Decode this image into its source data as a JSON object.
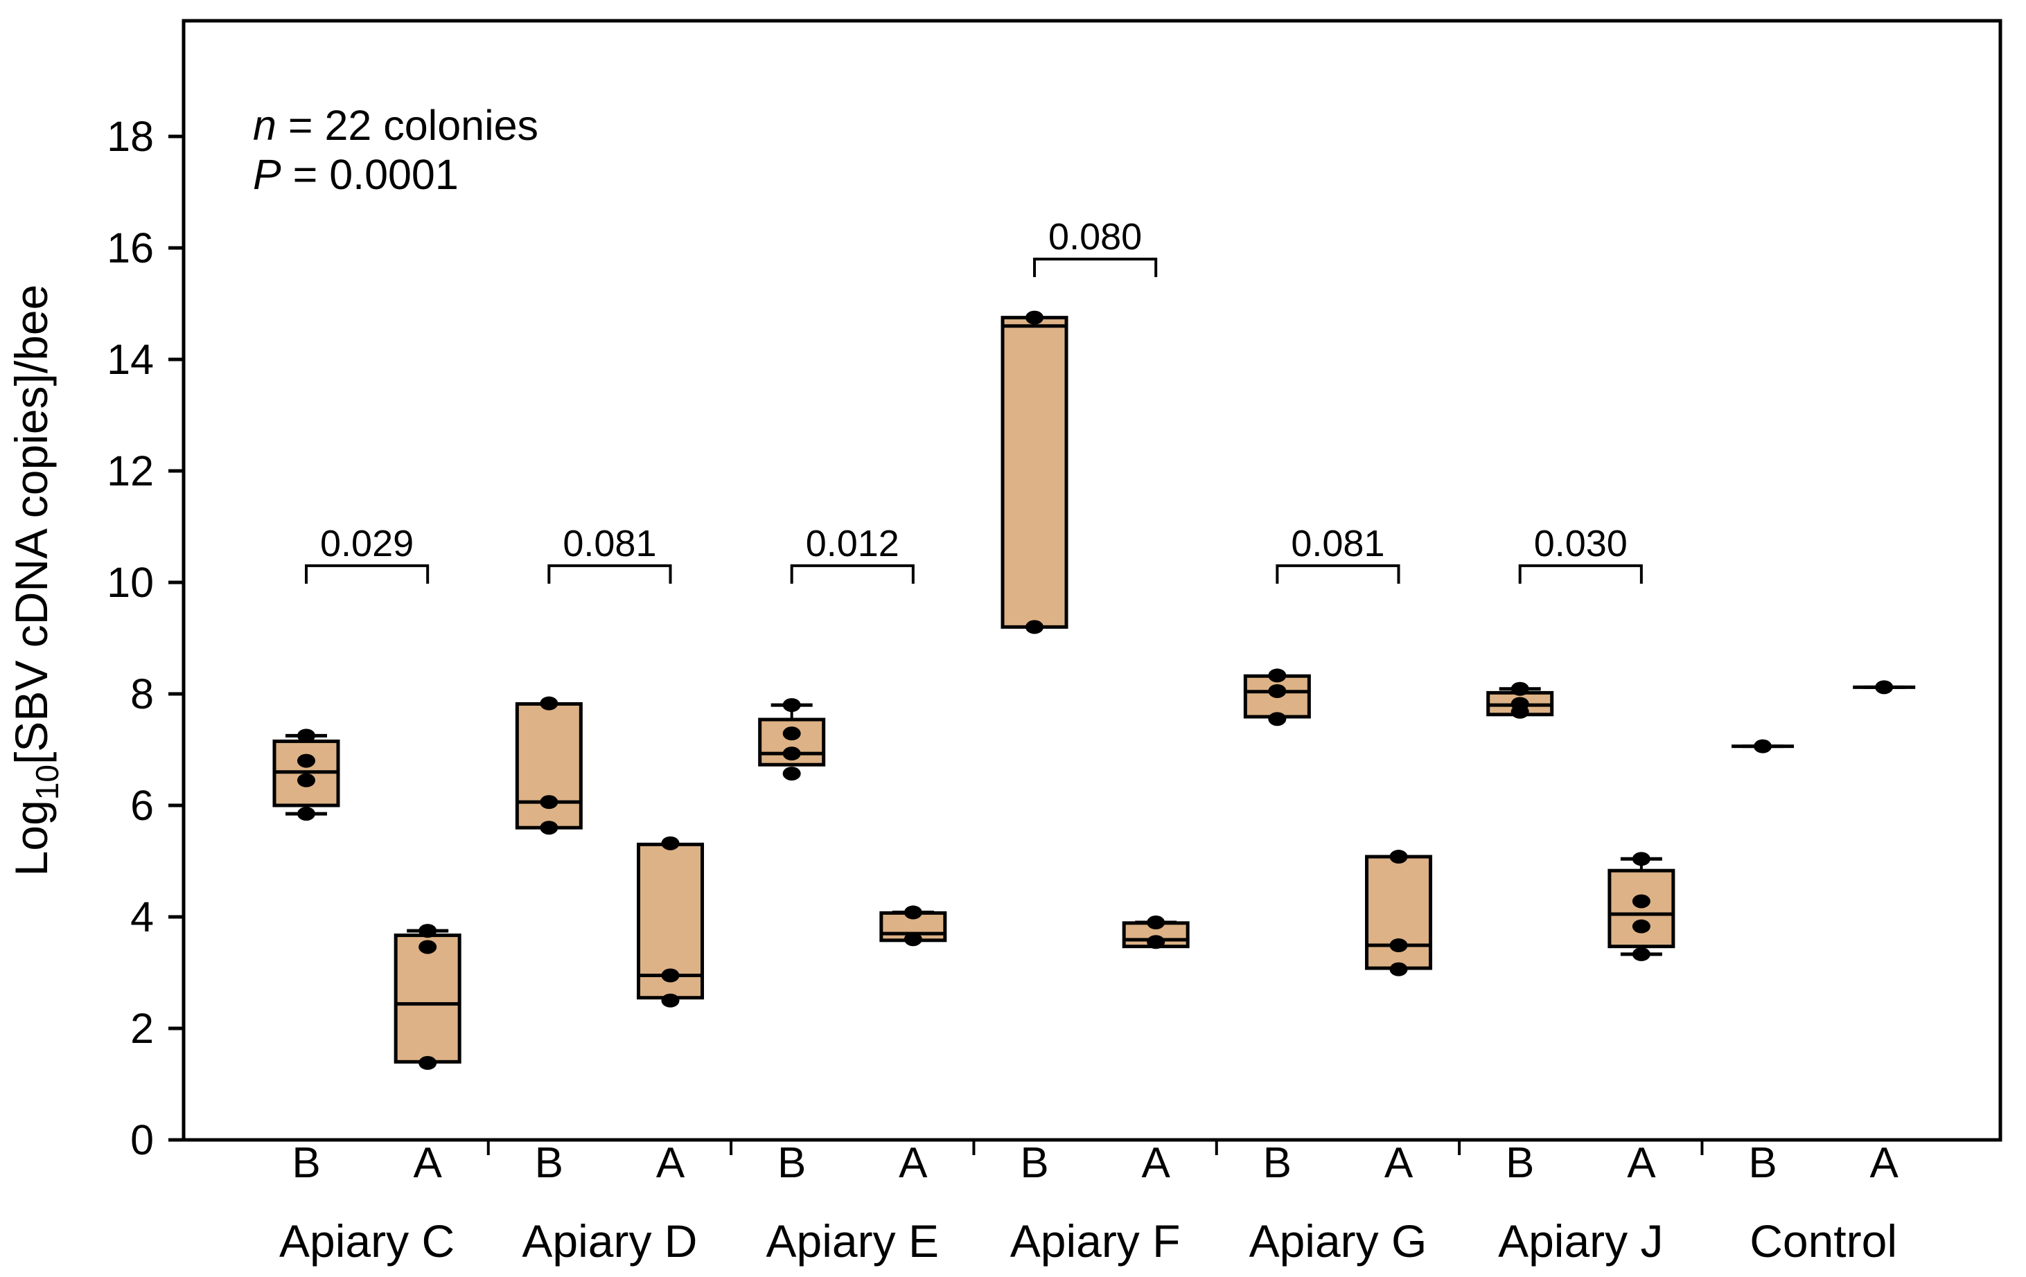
{
  "figure": {
    "background": "#FFFFFF",
    "line_color": "#000000"
  },
  "annotation": {
    "lines": [
      {
        "italic": "n",
        "text": " = 22 colonies"
      },
      {
        "italic": "P",
        "text": " = 0.0001"
      }
    ]
  },
  "chart_data": {
    "type": "box",
    "title": "",
    "ylabel_parts": {
      "pre": "Log",
      "sub": "10",
      "post": "[SBV cDNA copies]/bee"
    },
    "ylabel_plain": "Log10[SBV cDNA copies]/bee",
    "ylim": [
      0,
      20
    ],
    "yticks": [
      0,
      2,
      4,
      6,
      8,
      10,
      12,
      14,
      16,
      18
    ],
    "grid": false,
    "box_fill": "#DDB286",
    "point_color": "#000000",
    "condition_order": [
      "B",
      "A"
    ],
    "groups": [
      {
        "label": "Apiary C",
        "pvalue": "0.029",
        "bracket_y": 10.3,
        "boxes": [
          {
            "condition": "B",
            "q1": 6.0,
            "median": 6.6,
            "q3": 7.15,
            "whisker_high": 7.25,
            "whisker_low": 5.85,
            "caps": [
              7.25,
              5.85
            ],
            "points": [
              7.25,
              6.8,
              6.45,
              5.85
            ]
          },
          {
            "condition": "A",
            "q1": 1.4,
            "median": 2.44,
            "q3": 3.67,
            "whisker_high": 3.75,
            "whisker_low": 1.4,
            "caps": [
              3.75
            ],
            "points": [
              3.75,
              3.46,
              1.38
            ]
          }
        ]
      },
      {
        "label": "Apiary D",
        "pvalue": "0.081",
        "bracket_y": 10.3,
        "boxes": [
          {
            "condition": "B",
            "q1": 5.6,
            "median": 6.06,
            "q3": 7.82,
            "caps": [],
            "points": [
              7.83,
              6.06,
              5.6
            ]
          },
          {
            "condition": "A",
            "q1": 2.55,
            "median": 2.95,
            "q3": 5.3,
            "caps": [],
            "points": [
              5.32,
              2.95,
              2.5
            ]
          }
        ]
      },
      {
        "label": "Apiary E",
        "pvalue": "0.012",
        "bracket_y": 10.3,
        "boxes": [
          {
            "condition": "B",
            "q1": 6.73,
            "median": 6.93,
            "q3": 7.54,
            "whisker_high": 7.8,
            "caps": [
              7.8
            ],
            "points": [
              7.8,
              7.29,
              6.93,
              6.57
            ]
          },
          {
            "condition": "A",
            "q1": 3.58,
            "median": 3.7,
            "q3": 4.07,
            "caps": [
              4.08
            ],
            "points": [
              4.08,
              3.6
            ]
          }
        ]
      },
      {
        "label": "Apiary F",
        "pvalue": "0.080",
        "bracket_y": 15.8,
        "boxes": [
          {
            "condition": "B",
            "q1": 9.2,
            "median": 14.6,
            "q3": 14.75,
            "caps": [],
            "points": [
              14.75,
              9.2
            ]
          },
          {
            "condition": "A",
            "q1": 3.47,
            "median": 3.59,
            "q3": 3.89,
            "caps": [
              3.9
            ],
            "points": [
              3.9,
              3.55
            ]
          }
        ]
      },
      {
        "label": "Apiary G",
        "pvalue": "0.081",
        "bracket_y": 10.3,
        "boxes": [
          {
            "condition": "B",
            "q1": 7.59,
            "median": 8.04,
            "q3": 8.32,
            "caps": [],
            "points": [
              8.33,
              8.05,
              7.55
            ]
          },
          {
            "condition": "A",
            "q1": 3.08,
            "median": 3.49,
            "q3": 5.08,
            "caps": [],
            "points": [
              5.08,
              3.49,
              3.06
            ]
          }
        ]
      },
      {
        "label": "Apiary J",
        "pvalue": "0.030",
        "bracket_y": 10.3,
        "boxes": [
          {
            "condition": "B",
            "q1": 7.63,
            "median": 7.8,
            "q3": 8.02,
            "whisker_high": 8.09,
            "caps": [
              8.09
            ],
            "points": [
              8.09,
              7.82,
              7.68
            ]
          },
          {
            "condition": "A",
            "q1": 3.47,
            "median": 4.05,
            "q3": 4.83,
            "whisker_high": 5.04,
            "whisker_low": 3.33,
            "caps": [
              5.04,
              3.33
            ],
            "points": [
              5.04,
              4.28,
              3.83,
              3.33
            ]
          }
        ]
      },
      {
        "label": "Control",
        "pvalue": null,
        "bracket_y": null,
        "boxes": [
          {
            "condition": "B",
            "single": 7.06,
            "caps": [
              7.06
            ],
            "points": [
              7.06
            ]
          },
          {
            "condition": "A",
            "single": 8.12,
            "caps": [
              8.12
            ],
            "points": [
              8.12
            ]
          }
        ]
      }
    ]
  }
}
